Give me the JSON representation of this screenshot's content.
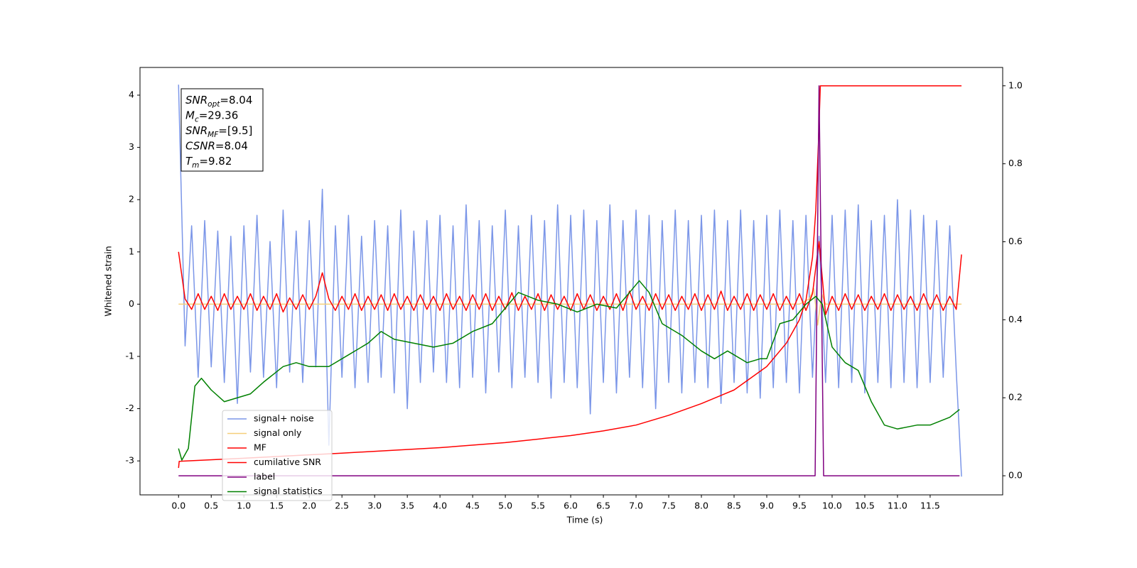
{
  "chart_data": {
    "type": "line",
    "xlabel": "Time (s)",
    "ylabel": "Whitened strain",
    "xlim": [
      -0.59,
      12.61
    ],
    "ylim": [
      -3.65,
      4.53
    ],
    "y2lim": [
      -0.049,
      1.047
    ],
    "xticks": [
      {
        "value": 0,
        "label": "0.0"
      },
      {
        "value": 0.5,
        "label": "0.5"
      },
      {
        "value": 1,
        "label": "1.0"
      },
      {
        "value": 1.5,
        "label": "1.5"
      },
      {
        "value": 2,
        "label": "2.0"
      },
      {
        "value": 2.5,
        "label": "2.5"
      },
      {
        "value": 3,
        "label": "3.0"
      },
      {
        "value": 3.5,
        "label": "3.5"
      },
      {
        "value": 4,
        "label": "4.0"
      },
      {
        "value": 4.5,
        "label": "4.5"
      },
      {
        "value": 5,
        "label": "5.0"
      },
      {
        "value": 5.5,
        "label": "5.5"
      },
      {
        "value": 6,
        "label": "6.0"
      },
      {
        "value": 6.5,
        "label": "6.5"
      },
      {
        "value": 7,
        "label": "7.0"
      },
      {
        "value": 7.5,
        "label": "7.5"
      },
      {
        "value": 8,
        "label": "8.0"
      },
      {
        "value": 8.5,
        "label": "8.5"
      },
      {
        "value": 9,
        "label": "9.0"
      },
      {
        "value": 9.5,
        "label": "9.5"
      },
      {
        "value": 10,
        "label": "10.0"
      },
      {
        "value": 10.5,
        "label": "10.5"
      },
      {
        "value": 11,
        "label": "11.0"
      },
      {
        "value": 11.5,
        "label": "11.5"
      }
    ],
    "yticks": [
      -3,
      -2,
      -1,
      0,
      1,
      2,
      3,
      4
    ],
    "y2ticks": [
      {
        "value": 0,
        "label": "0.0"
      },
      {
        "value": 0.2,
        "label": "0.2"
      },
      {
        "value": 0.4,
        "label": "0.4"
      },
      {
        "value": 0.6,
        "label": "0.6"
      },
      {
        "value": 0.8,
        "label": "0.8"
      },
      {
        "value": 1,
        "label": "1.0"
      }
    ],
    "grid": false,
    "legend": "lower left",
    "annotations": [
      {
        "symbol": "SNR",
        "subscript": "opt",
        "text": "=8.04"
      },
      {
        "symbol": "M",
        "subscript": "c",
        "text": "=29.36"
      },
      {
        "symbol": "SNR",
        "subscript": "MF",
        "text": "=[9.5]"
      },
      {
        "symbol": "CSNR",
        "text": "=8.04"
      },
      {
        "symbol": "T",
        "subscript": "m",
        "text": "=9.82"
      }
    ],
    "x": [
      0,
      0.1,
      0.2,
      0.3,
      0.4,
      0.5,
      0.6,
      0.7,
      0.8,
      0.9,
      1,
      1.1,
      1.2,
      1.3,
      1.4,
      1.5,
      1.6,
      1.7,
      1.8,
      1.9,
      2,
      2.1,
      2.2,
      2.3,
      2.4,
      2.5,
      2.6,
      2.7,
      2.8,
      2.9,
      3,
      3.1,
      3.2,
      3.3,
      3.4,
      3.5,
      3.6,
      3.7,
      3.8,
      3.9,
      4,
      4.1,
      4.2,
      4.3,
      4.4,
      4.5,
      4.6,
      4.7,
      4.8,
      4.9,
      5,
      5.1,
      5.2,
      5.3,
      5.4,
      5.5,
      5.6,
      5.7,
      5.8,
      5.9,
      6,
      6.1,
      6.2,
      6.3,
      6.4,
      6.5,
      6.6,
      6.7,
      6.8,
      6.9,
      7,
      7.1,
      7.2,
      7.3,
      7.4,
      7.5,
      7.6,
      7.7,
      7.8,
      7.9,
      8,
      8.1,
      8.2,
      8.3,
      8.4,
      8.5,
      8.6,
      8.7,
      8.8,
      8.9,
      9,
      9.1,
      9.2,
      9.3,
      9.4,
      9.5,
      9.6,
      9.7,
      9.8,
      9.9,
      10,
      10.1,
      10.2,
      10.3,
      10.4,
      10.5,
      10.6,
      10.7,
      10.8,
      10.9,
      11,
      11.1,
      11.2,
      11.3,
      11.4,
      11.5,
      11.6,
      11.7,
      11.8,
      11.9,
      11.98
    ],
    "series": [
      {
        "name": "signal+ noise",
        "color": "#7b96e8",
        "values": [
          4.2,
          -0.8,
          1.5,
          -1.4,
          1.6,
          -1.2,
          1.4,
          -1.5,
          1.3,
          -1.9,
          1.5,
          -1.3,
          1.7,
          -1.4,
          1.2,
          -1.6,
          1.8,
          -1.3,
          1.4,
          -1.5,
          1.6,
          -1.2,
          2.2,
          -2.7,
          1.5,
          -1.4,
          1.7,
          -1.6,
          1.3,
          -1.5,
          1.6,
          -1.4,
          1.5,
          -1.7,
          1.8,
          -2.0,
          1.4,
          -1.5,
          1.6,
          -1.3,
          1.7,
          -1.5,
          1.5,
          -1.6,
          1.9,
          -1.4,
          1.6,
          -1.7,
          1.5,
          -1.3,
          1.8,
          -1.6,
          1.5,
          -1.4,
          1.7,
          -1.5,
          1.6,
          -1.8,
          1.9,
          -1.5,
          1.7,
          -1.6,
          1.8,
          -2.1,
          1.6,
          -1.5,
          1.9,
          -1.7,
          1.6,
          -1.4,
          1.8,
          -1.6,
          1.7,
          -2.0,
          1.6,
          -1.5,
          1.8,
          -1.7,
          1.6,
          -1.5,
          1.7,
          -1.6,
          1.8,
          -1.9,
          1.6,
          -1.5,
          1.8,
          -1.7,
          1.6,
          -1.8,
          1.7,
          -1.6,
          1.8,
          -1.5,
          1.6,
          -1.7,
          1.7,
          -1.4,
          1.3,
          -1.5,
          1.7,
          -1.6,
          1.8,
          -1.5,
          1.9,
          -1.7,
          1.6,
          -1.5,
          1.7,
          -1.6,
          2.0,
          -1.5,
          1.8,
          -1.6,
          1.7,
          -1.5,
          1.6,
          -1.4,
          1.5,
          -1.3,
          -3.3
        ]
      },
      {
        "name": "signal only",
        "color": "#f5cf7a",
        "x": [
          0,
          9.5,
          9.65,
          9.72,
          9.78,
          9.84,
          9.9,
          11.98
        ],
        "values": [
          0,
          0,
          0.1,
          0.3,
          -0.4,
          0.2,
          0,
          0
        ]
      },
      {
        "name": "MF",
        "color": "#ff0000",
        "values": [
          1.0,
          0.1,
          -0.1,
          0.2,
          -0.1,
          0.15,
          -0.12,
          0.2,
          -0.1,
          0.15,
          -0.1,
          0.2,
          -0.12,
          0.15,
          -0.1,
          0.2,
          -0.15,
          0.12,
          -0.1,
          0.18,
          -0.1,
          0.15,
          0.6,
          0.1,
          -0.12,
          0.15,
          -0.1,
          0.2,
          -0.12,
          0.15,
          -0.1,
          0.18,
          -0.12,
          0.2,
          -0.1,
          0.15,
          -0.12,
          0.18,
          -0.1,
          0.15,
          -0.12,
          0.2,
          -0.1,
          0.15,
          -0.12,
          0.18,
          -0.1,
          0.2,
          -0.12,
          0.15,
          -0.1,
          0.22,
          -0.12,
          0.15,
          -0.1,
          0.2,
          -0.12,
          0.18,
          -0.1,
          0.15,
          -0.12,
          0.2,
          -0.1,
          0.18,
          -0.12,
          0.15,
          -0.1,
          0.2,
          -0.12,
          0.25,
          -0.1,
          0.15,
          -0.12,
          0.2,
          -0.1,
          0.18,
          -0.12,
          0.15,
          -0.1,
          0.2,
          -0.12,
          0.18,
          -0.1,
          0.25,
          -0.12,
          0.15,
          -0.1,
          0.2,
          -0.12,
          0.18,
          -0.1,
          0.2,
          -0.12,
          0.15,
          -0.1,
          0.2,
          -0.12,
          0.2,
          1.2,
          -0.2,
          0.15,
          -0.12,
          0.2,
          -0.1,
          0.18,
          -0.12,
          0.15,
          -0.1,
          0.2,
          -0.12,
          0.18,
          -0.1,
          0.15,
          -0.12,
          0.2,
          -0.1,
          0.18,
          -0.12,
          0.15,
          -0.1,
          0.95
        ]
      },
      {
        "name": "cumilative SNR",
        "color": "#ff0000",
        "axis": "y2",
        "x": [
          0,
          0.01,
          1,
          2.5,
          4,
          5,
          6,
          6.5,
          7,
          7.5,
          8,
          8.5,
          9,
          9.3,
          9.5,
          9.6,
          9.7,
          9.75,
          9.79,
          9.82,
          11.98
        ],
        "values": [
          0.02,
          0.037,
          0.045,
          0.058,
          0.072,
          0.085,
          0.103,
          0.115,
          0.13,
          0.155,
          0.185,
          0.22,
          0.28,
          0.34,
          0.4,
          0.45,
          0.56,
          0.68,
          0.85,
          1.0,
          1.0
        ]
      },
      {
        "name": "label",
        "color": "#800080",
        "axis": "y2",
        "x": [
          0,
          9.74,
          9.8,
          9.87,
          11.95
        ],
        "values": [
          0,
          0,
          1,
          0,
          0
        ]
      },
      {
        "name": "signal statistics",
        "color": "#008000",
        "axis": "y2",
        "x": [
          0,
          0.05,
          0.15,
          0.25,
          0.35,
          0.5,
          0.7,
          0.9,
          1.1,
          1.3,
          1.6,
          1.8,
          2.0,
          2.3,
          2.6,
          2.9,
          3.1,
          3.3,
          3.6,
          3.9,
          4.2,
          4.5,
          4.8,
          5.0,
          5.2,
          5.5,
          5.8,
          6.1,
          6.4,
          6.7,
          6.95,
          7.05,
          7.2,
          7.4,
          7.7,
          8.0,
          8.2,
          8.4,
          8.7,
          8.9,
          9.0,
          9.2,
          9.4,
          9.6,
          9.75,
          9.85,
          10.0,
          10.2,
          10.4,
          10.6,
          10.8,
          11.0,
          11.3,
          11.5,
          11.8,
          11.95
        ],
        "values": [
          0.07,
          0.04,
          0.07,
          0.23,
          0.25,
          0.22,
          0.19,
          0.2,
          0.21,
          0.24,
          0.28,
          0.29,
          0.28,
          0.28,
          0.31,
          0.34,
          0.37,
          0.35,
          0.34,
          0.33,
          0.34,
          0.37,
          0.39,
          0.43,
          0.47,
          0.45,
          0.44,
          0.42,
          0.44,
          0.43,
          0.48,
          0.5,
          0.47,
          0.39,
          0.36,
          0.32,
          0.3,
          0.32,
          0.29,
          0.3,
          0.3,
          0.39,
          0.4,
          0.44,
          0.46,
          0.44,
          0.33,
          0.29,
          0.27,
          0.19,
          0.13,
          0.12,
          0.13,
          0.13,
          0.15,
          0.17
        ]
      }
    ]
  }
}
